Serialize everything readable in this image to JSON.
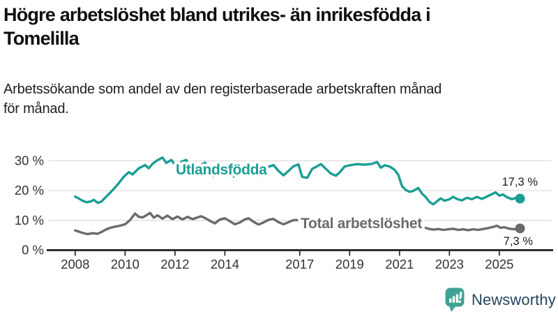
{
  "header": {
    "title_lines": [
      "Högre arbetslöshet bland utrikes- än inrikesfödda i",
      "Tomelilla"
    ],
    "subtitle_lines": [
      "Arbetssökande som andel av den registerbaserade arbetskraften månad",
      "för månad."
    ]
  },
  "chart_data": {
    "type": "line",
    "title": "Högre arbetslöshet bland utrikes- än inrikesfödda i Tomelilla",
    "subtitle": "Arbetssökande som andel av den registerbaserade arbetskraften månad för månad.",
    "unit": "%",
    "xlim": [
      2008,
      2026.2
    ],
    "ylim": [
      0,
      33
    ],
    "grid": true,
    "legend_position": "inline-labels",
    "x_ticks": [
      2008,
      2010,
      2012,
      2014,
      2017,
      2019,
      2021,
      2023,
      2025
    ],
    "y_ticks": [
      0,
      10,
      20,
      30
    ],
    "y_tick_suffix": " %",
    "series": [
      {
        "name": "Utlandsfödda",
        "color": "#1a9e94",
        "end_label": "17,3 %",
        "end_value": 17.3,
        "points": [
          [
            2008.0,
            18.0
          ],
          [
            2008.15,
            17.3
          ],
          [
            2008.3,
            16.6
          ],
          [
            2008.45,
            16.1
          ],
          [
            2008.6,
            16.3
          ],
          [
            2008.75,
            16.9
          ],
          [
            2008.9,
            15.9
          ],
          [
            2009.05,
            16.3
          ],
          [
            2009.2,
            17.6
          ],
          [
            2009.45,
            19.7
          ],
          [
            2009.7,
            22.0
          ],
          [
            2009.95,
            24.7
          ],
          [
            2010.15,
            26.2
          ],
          [
            2010.3,
            25.4
          ],
          [
            2010.55,
            27.5
          ],
          [
            2010.8,
            28.6
          ],
          [
            2010.95,
            27.5
          ],
          [
            2011.1,
            29.0
          ],
          [
            2011.3,
            30.2
          ],
          [
            2011.5,
            31.1
          ],
          [
            2011.65,
            29.3
          ],
          [
            2011.85,
            30.3
          ],
          [
            2012.05,
            28.2
          ],
          [
            2012.25,
            29.7
          ],
          [
            2012.45,
            30.3
          ],
          [
            2012.6,
            28.0
          ],
          [
            2012.72,
            24.9
          ],
          [
            2012.85,
            26.4
          ],
          [
            2013.0,
            28.3
          ],
          [
            2013.2,
            29.4
          ],
          [
            2013.4,
            27.2
          ],
          [
            2013.55,
            24.8
          ],
          [
            2013.75,
            26.6
          ],
          [
            2013.95,
            28.4
          ],
          [
            2014.15,
            27.4
          ],
          [
            2014.35,
            24.7
          ],
          [
            2014.55,
            26.0
          ],
          [
            2014.75,
            27.8
          ],
          [
            2014.95,
            28.3
          ],
          [
            2015.15,
            26.3
          ],
          [
            2015.35,
            24.9
          ],
          [
            2015.55,
            26.4
          ],
          [
            2015.75,
            28.0
          ],
          [
            2015.95,
            28.6
          ],
          [
            2016.15,
            26.6
          ],
          [
            2016.35,
            25.1
          ],
          [
            2016.55,
            26.6
          ],
          [
            2016.75,
            28.2
          ],
          [
            2016.95,
            28.8
          ],
          [
            2017.1,
            24.6
          ],
          [
            2017.3,
            24.3
          ],
          [
            2017.5,
            27.3
          ],
          [
            2017.7,
            28.2
          ],
          [
            2017.85,
            28.9
          ],
          [
            2018.0,
            27.7
          ],
          [
            2018.25,
            25.7
          ],
          [
            2018.45,
            25.0
          ],
          [
            2018.6,
            26.1
          ],
          [
            2018.8,
            28.1
          ],
          [
            2019.0,
            28.5
          ],
          [
            2019.3,
            28.9
          ],
          [
            2019.6,
            28.7
          ],
          [
            2019.9,
            29.0
          ],
          [
            2020.1,
            29.6
          ],
          [
            2020.25,
            27.7
          ],
          [
            2020.4,
            28.5
          ],
          [
            2020.6,
            28.1
          ],
          [
            2020.8,
            27.0
          ],
          [
            2020.95,
            25.3
          ],
          [
            2021.1,
            21.5
          ],
          [
            2021.25,
            20.2
          ],
          [
            2021.4,
            19.6
          ],
          [
            2021.55,
            19.9
          ],
          [
            2021.75,
            20.9
          ],
          [
            2021.9,
            19.0
          ],
          [
            2022.05,
            17.8
          ],
          [
            2022.2,
            16.2
          ],
          [
            2022.35,
            15.4
          ],
          [
            2022.5,
            16.4
          ],
          [
            2022.65,
            17.4
          ],
          [
            2022.8,
            16.6
          ],
          [
            2023.0,
            17.1
          ],
          [
            2023.15,
            17.9
          ],
          [
            2023.3,
            17.2
          ],
          [
            2023.5,
            16.7
          ],
          [
            2023.7,
            17.6
          ],
          [
            2023.9,
            17.1
          ],
          [
            2024.1,
            17.9
          ],
          [
            2024.3,
            17.2
          ],
          [
            2024.5,
            18.0
          ],
          [
            2024.7,
            18.8
          ],
          [
            2024.85,
            19.4
          ],
          [
            2025.0,
            18.3
          ],
          [
            2025.15,
            18.7
          ],
          [
            2025.3,
            17.8
          ],
          [
            2025.5,
            17.1
          ],
          [
            2025.65,
            17.5
          ],
          [
            2025.83,
            17.3
          ]
        ]
      },
      {
        "name": "Total arbetslöshet",
        "color": "#6b6b6b",
        "end_label": "7,3 %",
        "end_value": 7.3,
        "points": [
          [
            2008.0,
            6.6
          ],
          [
            2008.15,
            6.2
          ],
          [
            2008.3,
            5.8
          ],
          [
            2008.5,
            5.4
          ],
          [
            2008.7,
            5.7
          ],
          [
            2008.9,
            5.5
          ],
          [
            2009.05,
            6.1
          ],
          [
            2009.2,
            6.8
          ],
          [
            2009.4,
            7.5
          ],
          [
            2009.6,
            7.9
          ],
          [
            2009.8,
            8.2
          ],
          [
            2010.0,
            8.7
          ],
          [
            2010.2,
            10.1
          ],
          [
            2010.4,
            12.3
          ],
          [
            2010.55,
            11.2
          ],
          [
            2010.7,
            11.0
          ],
          [
            2010.85,
            11.7
          ],
          [
            2011.0,
            12.5
          ],
          [
            2011.15,
            10.9
          ],
          [
            2011.3,
            11.7
          ],
          [
            2011.5,
            10.6
          ],
          [
            2011.7,
            11.6
          ],
          [
            2011.9,
            10.4
          ],
          [
            2012.1,
            11.3
          ],
          [
            2012.3,
            10.3
          ],
          [
            2012.5,
            11.2
          ],
          [
            2012.7,
            10.4
          ],
          [
            2012.9,
            11.0
          ],
          [
            2013.05,
            11.4
          ],
          [
            2013.25,
            10.6
          ],
          [
            2013.45,
            9.6
          ],
          [
            2013.6,
            9.0
          ],
          [
            2013.8,
            10.3
          ],
          [
            2014.0,
            10.7
          ],
          [
            2014.2,
            9.7
          ],
          [
            2014.4,
            8.7
          ],
          [
            2014.6,
            9.3
          ],
          [
            2014.8,
            10.3
          ],
          [
            2014.95,
            10.7
          ],
          [
            2015.15,
            9.5
          ],
          [
            2015.35,
            8.6
          ],
          [
            2015.55,
            9.3
          ],
          [
            2015.75,
            10.2
          ],
          [
            2015.95,
            10.5
          ],
          [
            2016.15,
            9.4
          ],
          [
            2016.35,
            8.7
          ],
          [
            2016.55,
            9.4
          ],
          [
            2016.75,
            10.1
          ],
          [
            2016.95,
            10.1
          ],
          [
            2017.15,
            9.3
          ],
          [
            2017.35,
            8.7
          ],
          [
            2017.55,
            9.2
          ],
          [
            2017.75,
            9.9
          ],
          [
            2017.95,
            9.8
          ],
          [
            2018.15,
            9.1
          ],
          [
            2018.35,
            8.6
          ],
          [
            2018.55,
            9.0
          ],
          [
            2018.75,
            9.5
          ],
          [
            2018.95,
            9.6
          ],
          [
            2019.15,
            9.2
          ],
          [
            2019.35,
            8.9
          ],
          [
            2019.55,
            9.3
          ],
          [
            2019.75,
            9.6
          ],
          [
            2019.95,
            9.9
          ],
          [
            2020.15,
            10.5
          ],
          [
            2020.35,
            11.0
          ],
          [
            2020.55,
            10.6
          ],
          [
            2020.75,
            10.1
          ],
          [
            2020.95,
            9.8
          ],
          [
            2021.15,
            9.3
          ],
          [
            2021.35,
            8.8
          ],
          [
            2021.55,
            8.4
          ],
          [
            2021.75,
            8.1
          ],
          [
            2021.95,
            7.7
          ],
          [
            2022.15,
            7.2
          ],
          [
            2022.35,
            6.9
          ],
          [
            2022.55,
            7.1
          ],
          [
            2022.75,
            6.8
          ],
          [
            2022.95,
            7.0
          ],
          [
            2023.15,
            7.2
          ],
          [
            2023.35,
            6.8
          ],
          [
            2023.55,
            7.0
          ],
          [
            2023.75,
            6.7
          ],
          [
            2023.95,
            7.0
          ],
          [
            2024.15,
            6.8
          ],
          [
            2024.35,
            7.1
          ],
          [
            2024.55,
            7.4
          ],
          [
            2024.75,
            7.8
          ],
          [
            2024.9,
            8.2
          ],
          [
            2025.05,
            7.5
          ],
          [
            2025.2,
            7.7
          ],
          [
            2025.4,
            7.2
          ],
          [
            2025.6,
            7.0
          ],
          [
            2025.83,
            7.3
          ]
        ]
      }
    ]
  },
  "colors": {
    "axis": "#2e2e2e",
    "grid": "#dcdcdc",
    "tick_text": "#333333",
    "end_label_text": "#1a1a1a"
  },
  "footer": {
    "brand": "Newsworthy",
    "logo_color": "#3fa294",
    "text_color": "#26455f"
  }
}
